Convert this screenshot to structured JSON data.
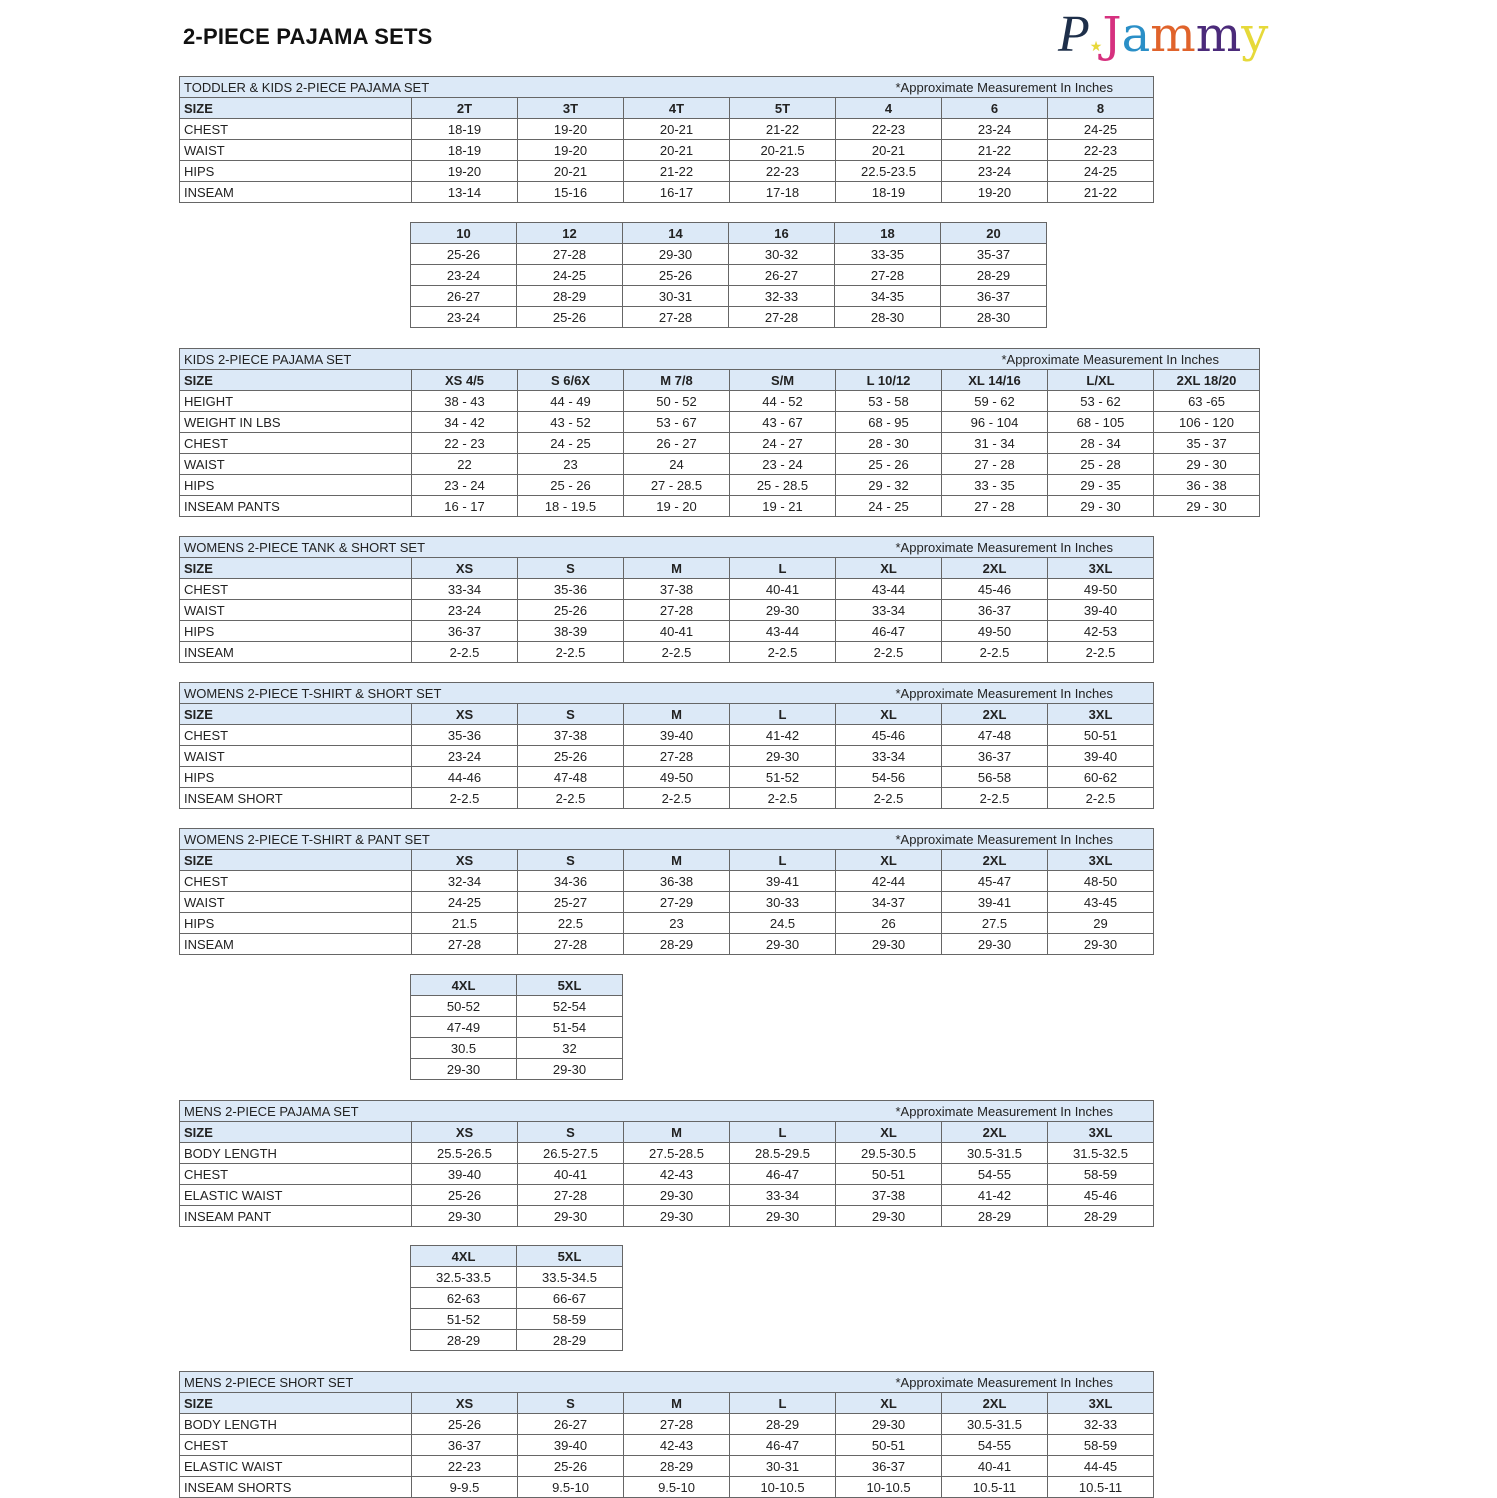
{
  "page": {
    "title": "2-PIECE PAJAMA SETS",
    "logo_text": "PJammy"
  },
  "colors": {
    "header_bg": "#dce9f7",
    "border": "#666666"
  },
  "tables": [
    {
      "title": "TODDLER & KIDS 2-PIECE PAJAMA SET",
      "note": "*Approximate Measurement In Inches",
      "sizes": [
        "2T",
        "3T",
        "4T",
        "5T",
        "4",
        "6",
        "8"
      ],
      "rows": [
        {
          "label": "CHEST",
          "values": [
            "18-19",
            "19-20",
            "20-21",
            "21-22",
            "22-23",
            "23-24",
            "24-25"
          ]
        },
        {
          "label": "WAIST",
          "values": [
            "18-19",
            "19-20",
            "20-21",
            "20-21.5",
            "20-21",
            "21-22",
            "22-23"
          ]
        },
        {
          "label": "HIPS",
          "values": [
            "19-20",
            "20-21",
            "21-22",
            "22-23",
            "22.5-23.5",
            "23-24",
            "24-25"
          ]
        },
        {
          "label": "INSEAM",
          "values": [
            "13-14",
            "15-16",
            "16-17",
            "17-18",
            "18-19",
            "19-20",
            "21-22"
          ]
        }
      ]
    },
    {
      "continuation": true,
      "sizes": [
        "10",
        "12",
        "14",
        "16",
        "18",
        "20"
      ],
      "rows": [
        {
          "values": [
            "25-26",
            "27-28",
            "29-30",
            "30-32",
            "33-35",
            "35-37"
          ]
        },
        {
          "values": [
            "23-24",
            "24-25",
            "25-26",
            "26-27",
            "27-28",
            "28-29"
          ]
        },
        {
          "values": [
            "26-27",
            "28-29",
            "30-31",
            "32-33",
            "34-35",
            "36-37"
          ]
        },
        {
          "values": [
            "23-24",
            "25-26",
            "27-28",
            "27-28",
            "28-30",
            "28-30"
          ]
        }
      ]
    },
    {
      "title": "KIDS 2-PIECE PAJAMA SET",
      "note": "*Approximate Measurement In Inches",
      "sizes": [
        "XS 4/5",
        "S 6/6X",
        "M 7/8",
        "S/M",
        "L 10/12",
        "XL 14/16",
        "L/XL",
        "2XL 18/20"
      ],
      "rows": [
        {
          "label": "HEIGHT",
          "values": [
            "38 - 43",
            "44 - 49",
            "50 - 52",
            "44 - 52",
            "53 - 58",
            "59 - 62",
            "53 - 62",
            "63 -65"
          ]
        },
        {
          "label": "WEIGHT IN LBS",
          "values": [
            "34 - 42",
            "43 - 52",
            "53 - 67",
            "43 - 67",
            "68 - 95",
            "96 - 104",
            "68 - 105",
            "106 - 120"
          ]
        },
        {
          "label": "CHEST",
          "values": [
            "22 - 23",
            "24 - 25",
            "26 - 27",
            "24 - 27",
            "28 - 30",
            "31 - 34",
            "28 - 34",
            "35 - 37"
          ]
        },
        {
          "label": "WAIST",
          "values": [
            "22",
            "23",
            "24",
            "23 - 24",
            "25 - 26",
            "27 - 28",
            "25 - 28",
            "29 - 30"
          ]
        },
        {
          "label": "HIPS",
          "values": [
            "23 - 24",
            "25 - 26",
            "27 - 28.5",
            "25 - 28.5",
            "29 - 32",
            "33 - 35",
            "29 - 35",
            "36 - 38"
          ]
        },
        {
          "label": "INSEAM PANTS",
          "values": [
            "16 - 17",
            "18 - 19.5",
            "19 - 20",
            "19 - 21",
            "24 - 25",
            "27 - 28",
            "29 - 30",
            "29 - 30"
          ]
        }
      ]
    },
    {
      "title": "WOMENS 2-PIECE TANK & SHORT SET",
      "note": "*Approximate Measurement In Inches",
      "sizes": [
        "XS",
        "S",
        "M",
        "L",
        "XL",
        "2XL",
        "3XL"
      ],
      "rows": [
        {
          "label": "CHEST",
          "values": [
            "33-34",
            "35-36",
            "37-38",
            "40-41",
            "43-44",
            "45-46",
            "49-50"
          ]
        },
        {
          "label": "WAIST",
          "values": [
            "23-24",
            "25-26",
            "27-28",
            "29-30",
            "33-34",
            "36-37",
            "39-40"
          ]
        },
        {
          "label": "HIPS",
          "values": [
            "36-37",
            "38-39",
            "40-41",
            "43-44",
            "46-47",
            "49-50",
            "42-53"
          ]
        },
        {
          "label": "INSEAM",
          "values": [
            "2-2.5",
            "2-2.5",
            "2-2.5",
            "2-2.5",
            "2-2.5",
            "2-2.5",
            "2-2.5"
          ]
        }
      ]
    },
    {
      "title": "WOMENS 2-PIECE T-SHIRT & SHORT SET",
      "note": "*Approximate Measurement In Inches",
      "sizes": [
        "XS",
        "S",
        "M",
        "L",
        "XL",
        "2XL",
        "3XL"
      ],
      "rows": [
        {
          "label": "CHEST",
          "values": [
            "35-36",
            "37-38",
            "39-40",
            "41-42",
            "45-46",
            "47-48",
            "50-51"
          ]
        },
        {
          "label": "WAIST",
          "values": [
            "23-24",
            "25-26",
            "27-28",
            "29-30",
            "33-34",
            "36-37",
            "39-40"
          ]
        },
        {
          "label": "HIPS",
          "values": [
            "44-46",
            "47-48",
            "49-50",
            "51-52",
            "54-56",
            "56-58",
            "60-62"
          ]
        },
        {
          "label": "INSEAM SHORT",
          "values": [
            "2-2.5",
            "2-2.5",
            "2-2.5",
            "2-2.5",
            "2-2.5",
            "2-2.5",
            "2-2.5"
          ]
        }
      ]
    },
    {
      "title": "WOMENS 2-PIECE T-SHIRT & PANT SET",
      "note": "*Approximate Measurement In Inches",
      "sizes": [
        "XS",
        "S",
        "M",
        "L",
        "XL",
        "2XL",
        "3XL"
      ],
      "rows": [
        {
          "label": "CHEST",
          "values": [
            "32-34",
            "34-36",
            "36-38",
            "39-41",
            "42-44",
            "45-47",
            "48-50"
          ]
        },
        {
          "label": "WAIST",
          "values": [
            "24-25",
            "25-27",
            "27-29",
            "30-33",
            "34-37",
            "39-41",
            "43-45"
          ]
        },
        {
          "label": "HIPS",
          "values": [
            "21.5",
            "22.5",
            "23",
            "24.5",
            "26",
            "27.5",
            "29"
          ]
        },
        {
          "label": "INSEAM",
          "values": [
            "27-28",
            "27-28",
            "28-29",
            "29-30",
            "29-30",
            "29-30",
            "29-30"
          ]
        }
      ]
    },
    {
      "continuation": true,
      "sizes": [
        "4XL",
        "5XL"
      ],
      "rows": [
        {
          "values": [
            "50-52",
            "52-54"
          ]
        },
        {
          "values": [
            "47-49",
            "51-54"
          ]
        },
        {
          "values": [
            "30.5",
            "32"
          ]
        },
        {
          "values": [
            "29-30",
            "29-30"
          ]
        }
      ]
    },
    {
      "title": "MENS 2-PIECE PAJAMA SET",
      "note": "*Approximate Measurement In Inches",
      "sizes": [
        "XS",
        "S",
        "M",
        "L",
        "XL",
        "2XL",
        "3XL"
      ],
      "rows": [
        {
          "label": "BODY LENGTH",
          "values": [
            "25.5-26.5",
            "26.5-27.5",
            "27.5-28.5",
            "28.5-29.5",
            "29.5-30.5",
            "30.5-31.5",
            "31.5-32.5"
          ]
        },
        {
          "label": "CHEST",
          "values": [
            "39-40",
            "40-41",
            "42-43",
            "46-47",
            "50-51",
            "54-55",
            "58-59"
          ]
        },
        {
          "label": "ELASTIC WAIST",
          "values": [
            "25-26",
            "27-28",
            "29-30",
            "33-34",
            "37-38",
            "41-42",
            "45-46"
          ]
        },
        {
          "label": "INSEAM PANT",
          "values": [
            "29-30",
            "29-30",
            "29-30",
            "29-30",
            "29-30",
            "28-29",
            "28-29"
          ]
        }
      ]
    },
    {
      "continuation": true,
      "sizes": [
        "4XL",
        "5XL"
      ],
      "rows": [
        {
          "values": [
            "32.5-33.5",
            "33.5-34.5"
          ]
        },
        {
          "values": [
            "62-63",
            "66-67"
          ]
        },
        {
          "values": [
            "51-52",
            "58-59"
          ]
        },
        {
          "values": [
            "28-29",
            "28-29"
          ]
        }
      ]
    },
    {
      "title": "MENS 2-PIECE SHORT SET",
      "note": "*Approximate Measurement In Inches",
      "sizes": [
        "XS",
        "S",
        "M",
        "L",
        "XL",
        "2XL",
        "3XL"
      ],
      "rows": [
        {
          "label": "BODY LENGTH",
          "values": [
            "25-26",
            "26-27",
            "27-28",
            "28-29",
            "29-30",
            "30.5-31.5",
            "32-33"
          ]
        },
        {
          "label": "CHEST",
          "values": [
            "36-37",
            "39-40",
            "42-43",
            "46-47",
            "50-51",
            "54-55",
            "58-59"
          ]
        },
        {
          "label": "ELASTIC WAIST",
          "values": [
            "22-23",
            "25-26",
            "28-29",
            "30-31",
            "36-37",
            "40-41",
            "44-45"
          ]
        },
        {
          "label": "INSEAM SHORTS",
          "values": [
            "9-9.5",
            "9.5-10",
            "9.5-10",
            "10-10.5",
            "10-10.5",
            "10.5-11",
            "10.5-11"
          ]
        }
      ]
    }
  ],
  "size_label": "SIZE"
}
